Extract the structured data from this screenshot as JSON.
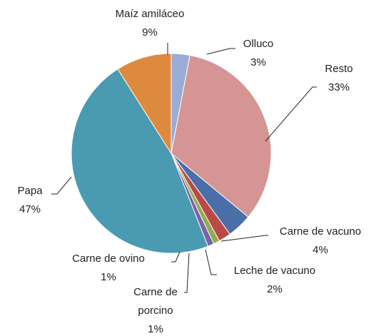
{
  "chart_data": {
    "type": "pie",
    "categories": [
      "Olluco",
      "Resto",
      "Carne de vacuno",
      "Leche de vacuno",
      "Carne de porcino",
      "Carne de ovino",
      "Papa",
      "Maíz amiláceo"
    ],
    "values": [
      3,
      33,
      4,
      2,
      1,
      1,
      47,
      9
    ],
    "value_labels": [
      "3%",
      "33%",
      "4%",
      "2%",
      "1%",
      "1%",
      "47%",
      "9%"
    ],
    "colors": [
      "#9aabd6",
      "#d49594",
      "#4a6fa8",
      "#b94a48",
      "#8fad4f",
      "#7a62a3",
      "#4a9ab1",
      "#de8a3e"
    ]
  }
}
